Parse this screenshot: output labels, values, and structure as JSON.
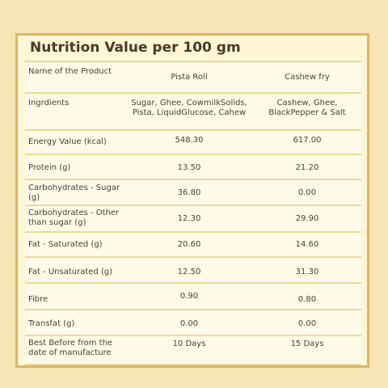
{
  "title": "Nutrition Value per 100 gm",
  "table": {
    "headers": [
      "Name of the Product",
      "Pista Roll",
      "Cashew fry"
    ],
    "rows": [
      [
        "Ingrdients",
        "Sugar, Ghee, CowmilkSolids, Pista, LiquidGlucose, Cahew",
        "Cashew, Ghee, BlackPepper & Salt"
      ],
      [
        "Energy Value (kcal)",
        "548.30",
        "617.00"
      ],
      [
        "Protein (g)",
        "13.50",
        "21.20"
      ],
      [
        "Carbohydrates - Sugar (g)",
        "36.80",
        "0.00"
      ],
      [
        "Carbohydrates - Other than sugar (g)",
        "12.30",
        "29.90"
      ],
      [
        "Fat - Saturated (g)",
        "20.60",
        "14.60"
      ],
      [
        "Fat - Unsaturated (g)",
        "12.50",
        "31.30"
      ],
      [
        "Fibre",
        "0.90",
        "0.80"
      ],
      [
        "Transfat (g)",
        "0.00",
        "0.00"
      ],
      [
        "Best Before from the date of manufacture",
        "10 Days",
        "15 Days"
      ]
    ]
  }
}
